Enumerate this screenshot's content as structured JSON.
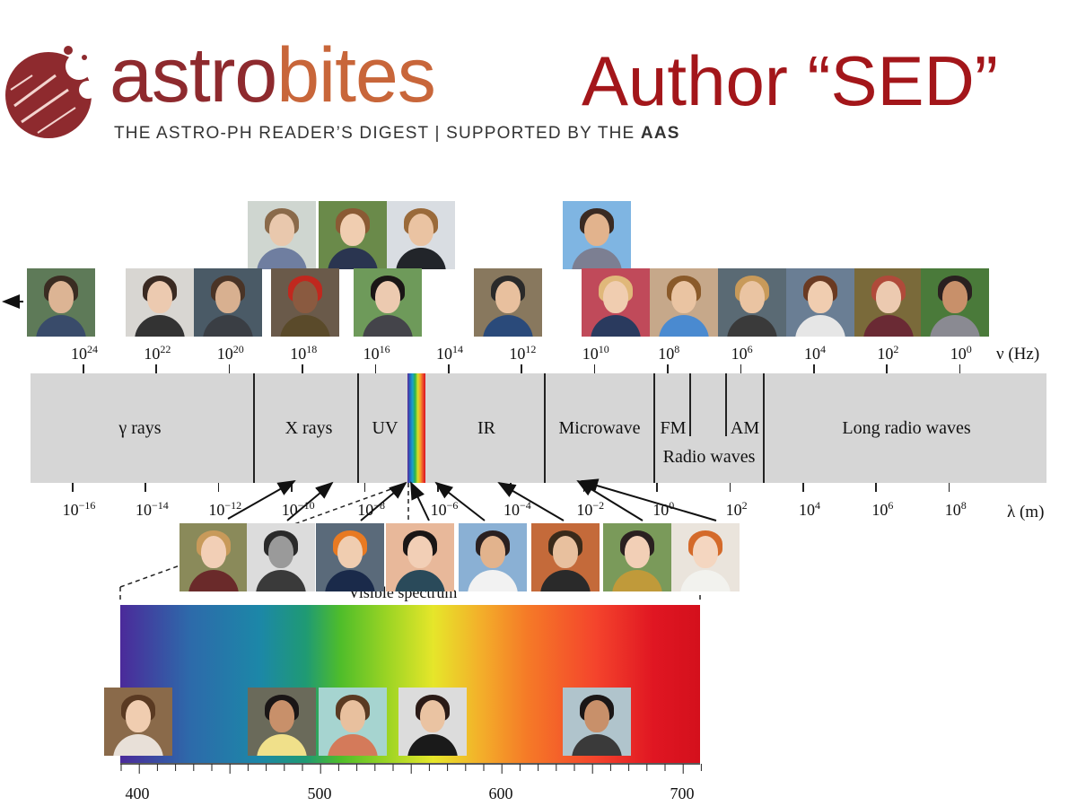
{
  "logo": {
    "part1": "astro",
    "part2": "bites",
    "tagline_main": "THE ASTRO-PH READER’S DIGEST  |  SUPPORTED BY THE ",
    "tagline_bold": "AAS"
  },
  "title": "Author “SED”",
  "colors": {
    "logo_dark": "#8e2a2e",
    "logo_orange": "#c8663a",
    "title": "#a3161a",
    "band": "#d6d6d6"
  },
  "regions": {
    "gamma": "γ rays",
    "xray": "X rays",
    "uv": "UV",
    "ir": "IR",
    "microwave": "Microwave",
    "fm": "FM",
    "am": "AM",
    "radio": "Radio waves",
    "long": "Long radio waves"
  },
  "freq_axis": {
    "unit": "ν (Hz)",
    "ticks": [
      {
        "b": "10",
        "e": "24"
      },
      {
        "b": "10",
        "e": "22"
      },
      {
        "b": "10",
        "e": "20"
      },
      {
        "b": "10",
        "e": "18"
      },
      {
        "b": "10",
        "e": "16"
      },
      {
        "b": "10",
        "e": "14"
      },
      {
        "b": "10",
        "e": "12"
      },
      {
        "b": "10",
        "e": "10"
      },
      {
        "b": "10",
        "e": "8"
      },
      {
        "b": "10",
        "e": "6"
      },
      {
        "b": "10",
        "e": "4"
      },
      {
        "b": "10",
        "e": "2"
      },
      {
        "b": "10",
        "e": "0"
      }
    ]
  },
  "wl_axis": {
    "unit": "λ (m)",
    "ticks": [
      {
        "b": "10",
        "e": "−16"
      },
      {
        "b": "10",
        "e": "−14"
      },
      {
        "b": "10",
        "e": "−12"
      },
      {
        "b": "10",
        "e": "−10"
      },
      {
        "b": "10",
        "e": "−8"
      },
      {
        "b": "10",
        "e": "−6"
      },
      {
        "b": "10",
        "e": "−4"
      },
      {
        "b": "10",
        "e": "−2"
      },
      {
        "b": "10",
        "e": "0"
      },
      {
        "b": "10",
        "e": "2"
      },
      {
        "b": "10",
        "e": "4"
      },
      {
        "b": "10",
        "e": "6"
      },
      {
        "b": "10",
        "e": "8"
      }
    ]
  },
  "visible": {
    "caption": "Visible spectrum",
    "labels": [
      "400",
      "500",
      "600",
      "700"
    ]
  }
}
